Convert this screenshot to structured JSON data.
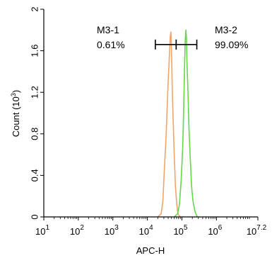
{
  "chart_data": {
    "type": "area",
    "xlabel": "APC-H",
    "ylabel_prefix": "Count (10",
    "ylabel_exp": "3",
    "ylabel_suffix": ")",
    "x_scale": "log",
    "xlim": [
      10,
      15848932
    ],
    "ylim": [
      0,
      2
    ],
    "x_ticks": [
      {
        "value": 10,
        "base": "10",
        "exp": "1"
      },
      {
        "value": 100,
        "base": "10",
        "exp": "2"
      },
      {
        "value": 1000,
        "base": "10",
        "exp": "3"
      },
      {
        "value": 10000,
        "base": "10",
        "exp": "4"
      },
      {
        "value": 100000,
        "base": "10",
        "exp": "5"
      },
      {
        "value": 1000000,
        "base": "10",
        "exp": "6"
      },
      {
        "value": 15848932,
        "base": "10",
        "exp": "7.2"
      }
    ],
    "y_ticks": [
      {
        "value": 0,
        "label": "0"
      },
      {
        "value": 0.4,
        "label": "0.4"
      },
      {
        "value": 0.8,
        "label": "0.8"
      },
      {
        "value": 1.2,
        "label": "1.2"
      },
      {
        "value": 1.6,
        "label": "1.6"
      },
      {
        "value": 2,
        "label": "2"
      }
    ],
    "series": [
      {
        "color": "#f0a46a",
        "x": [
          20000,
          25000,
          28000,
          30000,
          32000,
          34000,
          36000,
          38000,
          40000,
          42000,
          44000,
          46000,
          48000,
          50000,
          52000,
          55000,
          60000,
          65000,
          70000,
          75000,
          80000,
          90000
        ],
        "y": [
          0,
          0.03,
          0.15,
          0.35,
          0.55,
          0.7,
          0.9,
          1.1,
          1.3,
          1.45,
          1.6,
          1.74,
          1.78,
          1.6,
          1.3,
          1.0,
          0.6,
          0.3,
          0.15,
          0.05,
          0.02,
          0
        ]
      },
      {
        "color": "#66d64a",
        "x": [
          60000,
          75000,
          85000,
          95000,
          105000,
          110000,
          115000,
          120000,
          125000,
          130000,
          135000,
          140000,
          150000,
          160000,
          175000,
          190000,
          210000,
          240000,
          280000
        ],
        "y": [
          0,
          0.03,
          0.12,
          0.35,
          0.65,
          0.9,
          1.2,
          1.5,
          1.7,
          1.8,
          1.72,
          1.5,
          1.2,
          0.85,
          0.55,
          0.3,
          0.15,
          0.05,
          0
        ]
      }
    ],
    "gates": [
      {
        "name": "M3-1",
        "percent": "0.61%",
        "x_range": [
          17000,
          68000
        ],
        "y": 1.66
      },
      {
        "name": "M3-2",
        "percent": "99.09%",
        "x_range": [
          68000,
          270000
        ],
        "y": 1.66
      }
    ]
  }
}
